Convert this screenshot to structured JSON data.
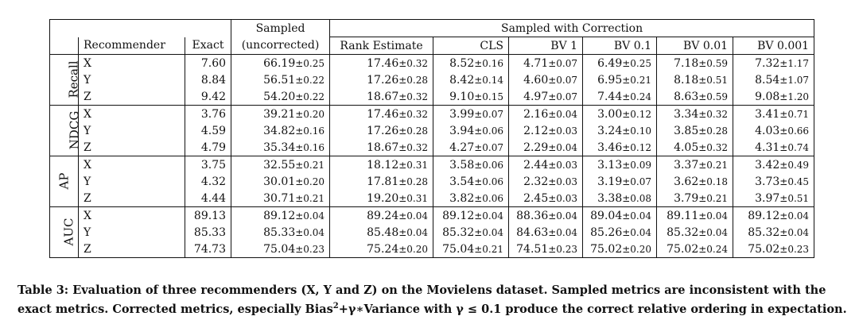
{
  "table": {
    "headers": {
      "sampled_line1": "Sampled",
      "sampled_line2": "(uncorrected)",
      "correction_group": "Sampled with Correction",
      "recommender": "Recommender",
      "exact": "Exact",
      "rank_estimate": "Rank Estimate",
      "cls": "CLS",
      "bv1": "BV 1",
      "bv01": "BV 0.1",
      "bv001": "BV 0.01",
      "bv0001": "BV 0.001"
    },
    "groups": [
      {
        "metric": "Recall",
        "rows": [
          {
            "rec": "X",
            "exact": "7.60",
            "cells": [
              [
                "66.19",
                "±0.25"
              ],
              [
                "17.46",
                "±0.32"
              ],
              [
                "8.52",
                "±0.16"
              ],
              [
                "4.71",
                "±0.07"
              ],
              [
                "6.49",
                "±0.25"
              ],
              [
                "7.18",
                "±0.59"
              ],
              [
                "7.32",
                "±1.17"
              ]
            ]
          },
          {
            "rec": "Y",
            "exact": "8.84",
            "cells": [
              [
                "56.51",
                "±0.22"
              ],
              [
                "17.26",
                "±0.28"
              ],
              [
                "8.42",
                "±0.14"
              ],
              [
                "4.60",
                "±0.07"
              ],
              [
                "6.95",
                "±0.21"
              ],
              [
                "8.18",
                "±0.51"
              ],
              [
                "8.54",
                "±1.07"
              ]
            ]
          },
          {
            "rec": "Z",
            "exact": "9.42",
            "cells": [
              [
                "54.20",
                "±0.22"
              ],
              [
                "18.67",
                "±0.32"
              ],
              [
                "9.10",
                "±0.15"
              ],
              [
                "4.97",
                "±0.07"
              ],
              [
                "7.44",
                "±0.24"
              ],
              [
                "8.63",
                "±0.59"
              ],
              [
                "9.08",
                "±1.20"
              ]
            ]
          }
        ]
      },
      {
        "metric": "NDCG",
        "rows": [
          {
            "rec": "X",
            "exact": "3.76",
            "cells": [
              [
                "39.21",
                "±0.20"
              ],
              [
                "17.46",
                "±0.32"
              ],
              [
                "3.99",
                "±0.07"
              ],
              [
                "2.16",
                "±0.04"
              ],
              [
                "3.00",
                "±0.12"
              ],
              [
                "3.34",
                "±0.32"
              ],
              [
                "3.41",
                "±0.71"
              ]
            ]
          },
          {
            "rec": "Y",
            "exact": "4.59",
            "cells": [
              [
                "34.82",
                "±0.16"
              ],
              [
                "17.26",
                "±0.28"
              ],
              [
                "3.94",
                "±0.06"
              ],
              [
                "2.12",
                "±0.03"
              ],
              [
                "3.24",
                "±0.10"
              ],
              [
                "3.85",
                "±0.28"
              ],
              [
                "4.03",
                "±0.66"
              ]
            ]
          },
          {
            "rec": "Z",
            "exact": "4.79",
            "cells": [
              [
                "35.34",
                "±0.16"
              ],
              [
                "18.67",
                "±0.32"
              ],
              [
                "4.27",
                "±0.07"
              ],
              [
                "2.29",
                "±0.04"
              ],
              [
                "3.46",
                "±0.12"
              ],
              [
                "4.05",
                "±0.32"
              ],
              [
                "4.31",
                "±0.74"
              ]
            ]
          }
        ]
      },
      {
        "metric": "AP",
        "rows": [
          {
            "rec": "X",
            "exact": "3.75",
            "cells": [
              [
                "32.55",
                "±0.21"
              ],
              [
                "18.12",
                "±0.31"
              ],
              [
                "3.58",
                "±0.06"
              ],
              [
                "2.44",
                "±0.03"
              ],
              [
                "3.13",
                "±0.09"
              ],
              [
                "3.37",
                "±0.21"
              ],
              [
                "3.42",
                "±0.49"
              ]
            ]
          },
          {
            "rec": "Y",
            "exact": "4.32",
            "cells": [
              [
                "30.01",
                "±0.20"
              ],
              [
                "17.81",
                "±0.28"
              ],
              [
                "3.54",
                "±0.06"
              ],
              [
                "2.32",
                "±0.03"
              ],
              [
                "3.19",
                "±0.07"
              ],
              [
                "3.62",
                "±0.18"
              ],
              [
                "3.73",
                "±0.45"
              ]
            ]
          },
          {
            "rec": "Z",
            "exact": "4.44",
            "cells": [
              [
                "30.71",
                "±0.21"
              ],
              [
                "19.20",
                "±0.31"
              ],
              [
                "3.82",
                "±0.06"
              ],
              [
                "2.45",
                "±0.03"
              ],
              [
                "3.38",
                "±0.08"
              ],
              [
                "3.79",
                "±0.21"
              ],
              [
                "3.97",
                "±0.51"
              ]
            ]
          }
        ]
      },
      {
        "metric": "AUC",
        "rows": [
          {
            "rec": "X",
            "exact": "89.13",
            "cells": [
              [
                "89.12",
                "±0.04"
              ],
              [
                "89.24",
                "±0.04"
              ],
              [
                "89.12",
                "±0.04"
              ],
              [
                "88.36",
                "±0.04"
              ],
              [
                "89.04",
                "±0.04"
              ],
              [
                "89.11",
                "±0.04"
              ],
              [
                "89.12",
                "±0.04"
              ]
            ]
          },
          {
            "rec": "Y",
            "exact": "85.33",
            "cells": [
              [
                "85.33",
                "±0.04"
              ],
              [
                "85.48",
                "±0.04"
              ],
              [
                "85.32",
                "±0.04"
              ],
              [
                "84.63",
                "±0.04"
              ],
              [
                "85.26",
                "±0.04"
              ],
              [
                "85.32",
                "±0.04"
              ],
              [
                "85.32",
                "±0.04"
              ]
            ]
          },
          {
            "rec": "Z",
            "exact": "74.73",
            "cells": [
              [
                "75.04",
                "±0.23"
              ],
              [
                "75.24",
                "±0.20"
              ],
              [
                "75.04",
                "±0.21"
              ],
              [
                "74.51",
                "±0.23"
              ],
              [
                "75.02",
                "±0.20"
              ],
              [
                "75.02",
                "±0.24"
              ],
              [
                "75.02",
                "±0.23"
              ]
            ]
          }
        ]
      }
    ]
  },
  "caption": {
    "part1": "Table 3: Evaluation of three recommenders (X, Y and Z) on the Movielens dataset. Sampled metrics are inconsistent with the exact metrics. Corrected metrics, especially Bias",
    "sup": "2",
    "part2": "+γ∗Variance with γ ≤ 0.1 produce the correct relative ordering in expectation."
  }
}
